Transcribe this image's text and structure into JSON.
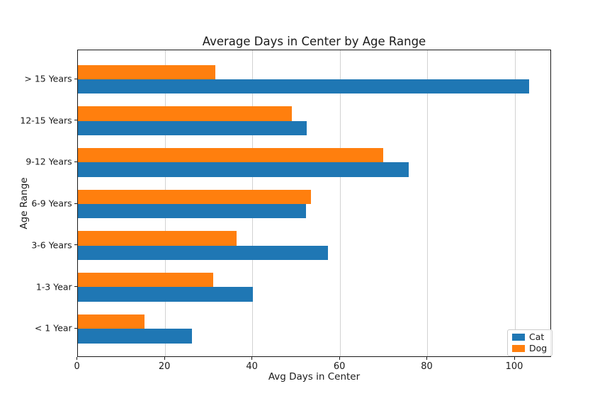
{
  "chart_data": {
    "type": "bar",
    "orientation": "horizontal",
    "title": "Average Days in Center by Age Range",
    "xlabel": "Avg Days in Center",
    "ylabel": "Age Range",
    "categories": [
      "> 15 Years",
      "12-15 Years",
      "9-12 Years",
      "6-9 Years",
      "3-6 Years",
      "1-3 Year",
      "< 1 Year"
    ],
    "categories_order": "top-to-bottom",
    "series": [
      {
        "name": "Cat",
        "color": "#1f77b4",
        "values": [
          103.3,
          52.3,
          75.7,
          52.2,
          57.2,
          40.1,
          26.2
        ]
      },
      {
        "name": "Dog",
        "color": "#ff7f0e",
        "values": [
          31.5,
          48.9,
          69.8,
          53.3,
          36.4,
          31.0,
          15.2
        ]
      }
    ],
    "xlim": [
      0,
      108.5
    ],
    "xticks": [
      0,
      20,
      40,
      60,
      80,
      100
    ],
    "grid": "vertical-only",
    "grid_color": "#d2d2d2",
    "legend": {
      "position": "lower right",
      "entries": [
        "Cat",
        "Dog"
      ]
    }
  }
}
